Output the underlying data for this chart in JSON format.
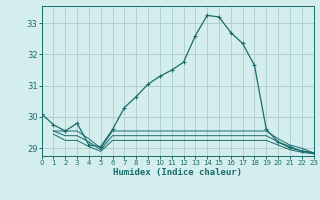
{
  "xlabel": "Humidex (Indice chaleur)",
  "background_color": "#d4eeee",
  "grid_color": "#b0d0d0",
  "line_color": "#1a6b6b",
  "xlim": [
    0,
    23
  ],
  "ylim": [
    28.75,
    33.55
  ],
  "yticks": [
    29,
    30,
    31,
    32,
    33
  ],
  "xticks": [
    0,
    1,
    2,
    3,
    4,
    5,
    6,
    7,
    8,
    9,
    10,
    11,
    12,
    13,
    14,
    15,
    16,
    17,
    18,
    19,
    20,
    21,
    22,
    23
  ],
  "main_line": {
    "x": [
      0,
      1,
      2,
      3,
      4,
      5,
      6,
      7,
      8,
      9,
      10,
      11,
      12,
      13,
      14,
      15,
      16,
      17,
      18,
      19,
      20,
      21,
      22,
      23
    ],
    "y": [
      30.1,
      29.75,
      29.55,
      29.8,
      29.1,
      29.05,
      29.6,
      30.3,
      30.65,
      31.05,
      31.3,
      31.5,
      31.75,
      32.6,
      33.25,
      33.2,
      32.7,
      32.35,
      31.65,
      29.6,
      29.2,
      29.05,
      28.9,
      28.85
    ]
  },
  "extra_lines": [
    {
      "x": [
        1,
        2,
        3,
        4,
        5,
        6,
        7,
        8,
        9,
        10,
        11,
        12,
        13,
        14,
        15,
        16,
        17,
        18,
        19,
        20,
        21,
        22,
        23
      ],
      "y": [
        29.55,
        29.55,
        29.55,
        29.3,
        29.0,
        29.55,
        29.55,
        29.55,
        29.55,
        29.55,
        29.55,
        29.55,
        29.55,
        29.55,
        29.55,
        29.55,
        29.55,
        29.55,
        29.55,
        29.3,
        29.1,
        29.0,
        28.85
      ]
    },
    {
      "x": [
        1,
        2,
        3,
        4,
        5,
        6,
        7,
        8,
        9,
        10,
        11,
        12,
        13,
        14,
        15,
        16,
        17,
        18,
        19,
        20,
        21,
        22,
        23
      ],
      "y": [
        29.55,
        29.4,
        29.4,
        29.2,
        28.95,
        29.4,
        29.4,
        29.4,
        29.4,
        29.4,
        29.4,
        29.4,
        29.4,
        29.4,
        29.4,
        29.4,
        29.4,
        29.4,
        29.4,
        29.2,
        29.0,
        28.92,
        28.85
      ]
    },
    {
      "x": [
        1,
        2,
        3,
        4,
        5,
        6,
        7,
        8,
        9,
        10,
        11,
        12,
        13,
        14,
        15,
        16,
        17,
        18,
        19,
        20,
        21,
        22,
        23
      ],
      "y": [
        29.45,
        29.25,
        29.25,
        29.05,
        28.9,
        29.25,
        29.25,
        29.25,
        29.25,
        29.25,
        29.25,
        29.25,
        29.25,
        29.25,
        29.25,
        29.25,
        29.25,
        29.25,
        29.25,
        29.1,
        28.95,
        28.87,
        28.82
      ]
    }
  ]
}
